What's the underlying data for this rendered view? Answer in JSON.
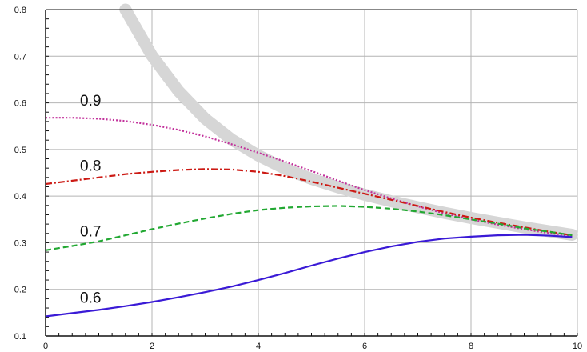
{
  "chart_data": {
    "type": "line",
    "title": "",
    "xlabel": "",
    "ylabel": "",
    "xlim": [
      0,
      10
    ],
    "ylim": [
      0.1,
      0.8
    ],
    "x_ticks": [
      "0",
      "2",
      "4",
      "6",
      "8",
      "10"
    ],
    "y_ticks": [
      "0.1",
      "0.2",
      "0.3",
      "0.4",
      "0.5",
      "0.6",
      "0.7",
      "0.8"
    ],
    "grid": true,
    "legend": "none",
    "series": [
      {
        "name": "0.9",
        "color": "#c2309b",
        "style": "dotted",
        "x": [
          0,
          0.5,
          1,
          1.5,
          2,
          2.5,
          3,
          3.5,
          4,
          4.5,
          5,
          5.5,
          6,
          6.5,
          7,
          7.5,
          8,
          8.5,
          9,
          9.5,
          9.9
        ],
        "y": [
          0.568,
          0.568,
          0.566,
          0.561,
          0.553,
          0.542,
          0.528,
          0.511,
          0.493,
          0.474,
          0.454,
          0.433,
          0.413,
          0.395,
          0.378,
          0.363,
          0.35,
          0.339,
          0.329,
          0.32,
          0.315
        ]
      },
      {
        "name": "0.8",
        "color": "#cc1a14",
        "style": "dashdot",
        "x": [
          0,
          0.5,
          1,
          1.5,
          2,
          2.5,
          3,
          3.5,
          4,
          4.5,
          5,
          5.5,
          6,
          6.5,
          7,
          7.5,
          8,
          8.5,
          9,
          9.5,
          9.9
        ],
        "y": [
          0.426,
          0.433,
          0.44,
          0.447,
          0.452,
          0.456,
          0.458,
          0.457,
          0.452,
          0.443,
          0.431,
          0.418,
          0.405,
          0.392,
          0.379,
          0.366,
          0.354,
          0.343,
          0.333,
          0.323,
          0.316
        ]
      },
      {
        "name": "0.7",
        "color": "#22a832",
        "style": "dashed",
        "x": [
          0,
          0.5,
          1,
          1.5,
          2,
          2.5,
          3,
          3.5,
          4,
          4.5,
          5,
          5.5,
          6,
          6.5,
          7,
          7.5,
          8,
          8.5,
          9,
          9.5,
          9.9
        ],
        "y": [
          0.284,
          0.293,
          0.303,
          0.316,
          0.329,
          0.341,
          0.352,
          0.362,
          0.37,
          0.375,
          0.378,
          0.379,
          0.377,
          0.373,
          0.367,
          0.359,
          0.35,
          0.341,
          0.331,
          0.323,
          0.316
        ]
      },
      {
        "name": "0.6",
        "color": "#3a1ad6",
        "style": "solid",
        "x": [
          0,
          0.5,
          1,
          1.5,
          2,
          2.5,
          3,
          3.5,
          4,
          4.5,
          5,
          5.5,
          6,
          6.5,
          7,
          7.5,
          8,
          8.5,
          9,
          9.5,
          9.9
        ],
        "y": [
          0.142,
          0.149,
          0.156,
          0.164,
          0.173,
          0.183,
          0.194,
          0.206,
          0.22,
          0.235,
          0.251,
          0.266,
          0.28,
          0.292,
          0.302,
          0.309,
          0.313,
          0.316,
          0.317,
          0.315,
          0.312
        ]
      },
      {
        "color": "#d6d6d6",
        "style": "thick-envelope",
        "x": [
          1.5,
          2,
          2.5,
          3,
          3.5,
          4,
          4.5,
          5,
          5.5,
          6,
          6.5,
          7,
          7.5,
          8,
          8.5,
          9,
          9.5,
          9.9
        ],
        "y": [
          0.8,
          0.701,
          0.625,
          0.566,
          0.521,
          0.487,
          0.459,
          0.437,
          0.419,
          0.403,
          0.389,
          0.376,
          0.364,
          0.353,
          0.343,
          0.333,
          0.324,
          0.317
        ]
      }
    ]
  }
}
